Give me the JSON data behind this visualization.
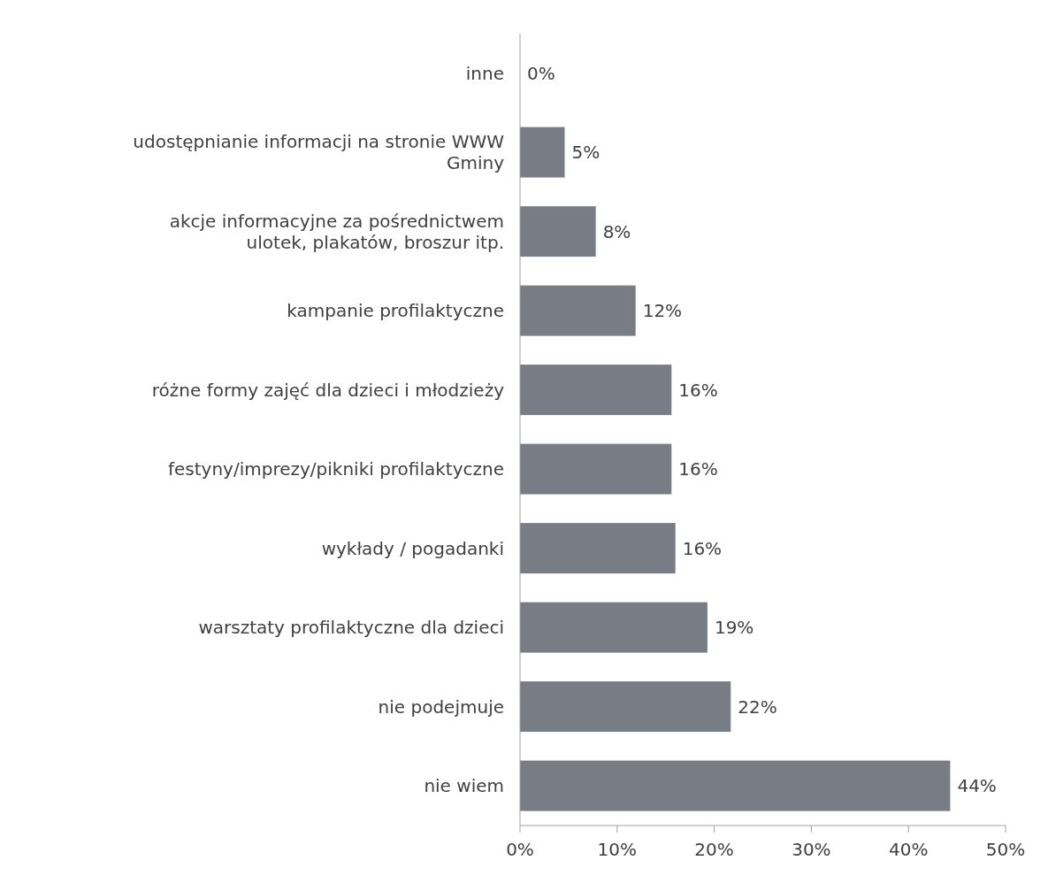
{
  "chart_data": {
    "type": "bar",
    "orientation": "horizontal",
    "categories": [
      "inne",
      "udostępnianie informacji na stronie WWW Gminy",
      "akcje informacyjne za pośrednictwem ulotek, plakatów, broszur itp.",
      "kampanie profilaktyczne",
      "różne formy zajęć dla dzieci i młodzieży",
      "festyny/imprezy/pikniki profilaktyczne",
      "wykłady / pogadanki",
      "warsztaty profilaktyczne dla dzieci",
      "nie podejmuje",
      "nie wiem"
    ],
    "values": [
      0,
      4.6,
      7.8,
      11.9,
      15.6,
      15.6,
      16.0,
      19.3,
      21.7,
      44.3
    ],
    "value_labels": [
      "0%",
      "5%",
      "8%",
      "12%",
      "16%",
      "16%",
      "16%",
      "19%",
      "22%",
      "44%"
    ],
    "color": "#787c85",
    "xlim": [
      0,
      50
    ],
    "xticks": [
      {
        "value": 0,
        "label": "0%"
      },
      {
        "value": 10,
        "label": "10%"
      },
      {
        "value": 20,
        "label": "20%"
      },
      {
        "value": 30,
        "label": "30%"
      },
      {
        "value": 40,
        "label": "40%"
      },
      {
        "value": 50,
        "label": "50%"
      }
    ],
    "grid": false
  }
}
